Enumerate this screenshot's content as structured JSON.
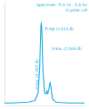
{
  "chart_data": {
    "type": "line",
    "annotations": [
      "Specimen: Ti-V (V : 5,4 %)",
      "Crystal: LiF",
      "Ti-Kβ (2,514 Å)",
      "V-Kα₂ (2,507 Å)",
      "V-Kα₁ (2,503 Å)"
    ],
    "x": [
      2.56,
      2.55,
      2.54,
      2.53,
      2.522,
      2.518,
      2.516,
      2.5145,
      2.514,
      2.5135,
      2.512,
      2.51,
      2.508,
      2.507,
      2.506,
      2.5045,
      2.503,
      2.5015,
      2.5,
      2.496,
      2.49,
      2.48,
      2.47,
      2.46
    ],
    "values": [
      3,
      3,
      3.5,
      4,
      6,
      15,
      45,
      95,
      100,
      95,
      45,
      15,
      14,
      18,
      14,
      20,
      28,
      18,
      8,
      4,
      3.5,
      3,
      3,
      3
    ],
    "color": "#22aee6",
    "xlim": [
      2.56,
      2.46
    ],
    "ylim": [
      0,
      125
    ],
    "tick_labels": false,
    "grid": false
  }
}
